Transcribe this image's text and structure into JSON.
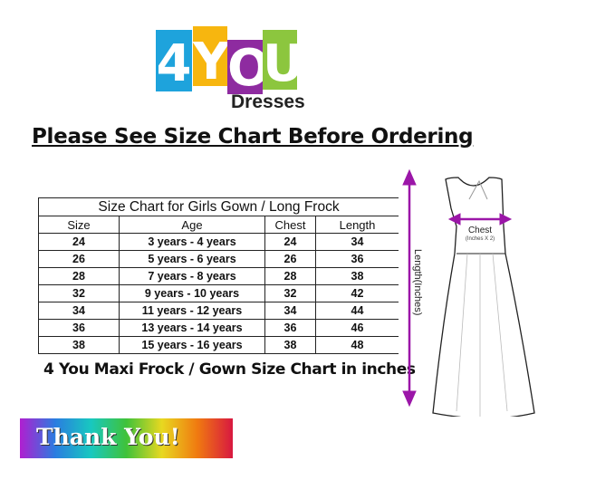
{
  "logo": {
    "letters": [
      "4",
      "Y",
      "O",
      "U"
    ],
    "colors": [
      "#1ea3dc",
      "#f7b60f",
      "#8e2ba0",
      "#8cc63e"
    ],
    "subtitle": "Dresses"
  },
  "heading": "Please See Size Chart Before Ordering",
  "table": {
    "title": "Size Chart for Girls Gown / Long Frock",
    "headers": [
      "Size",
      "Age",
      "Chest",
      "Length"
    ],
    "rows": [
      [
        "24",
        "3 years - 4 years",
        "24",
        "34"
      ],
      [
        "26",
        "5 years - 6 years",
        "26",
        "36"
      ],
      [
        "28",
        "7 years - 8 years",
        "28",
        "38"
      ],
      [
        "32",
        "9 years - 10 years",
        "32",
        "42"
      ],
      [
        "34",
        "11 years - 12 years",
        "34",
        "44"
      ],
      [
        "36",
        "13 years - 14 years",
        "36",
        "46"
      ],
      [
        "38",
        "15 years - 16 years",
        "38",
        "48"
      ]
    ]
  },
  "caption": "4 You Maxi Frock / Gown Size Chart in inches",
  "diagram": {
    "chest_label": "Chest",
    "chest_note": "(Inches X 2)",
    "length_label": "Length(Inches)",
    "arrow_color": "#9b16a8"
  },
  "thanks": "Thank You!"
}
